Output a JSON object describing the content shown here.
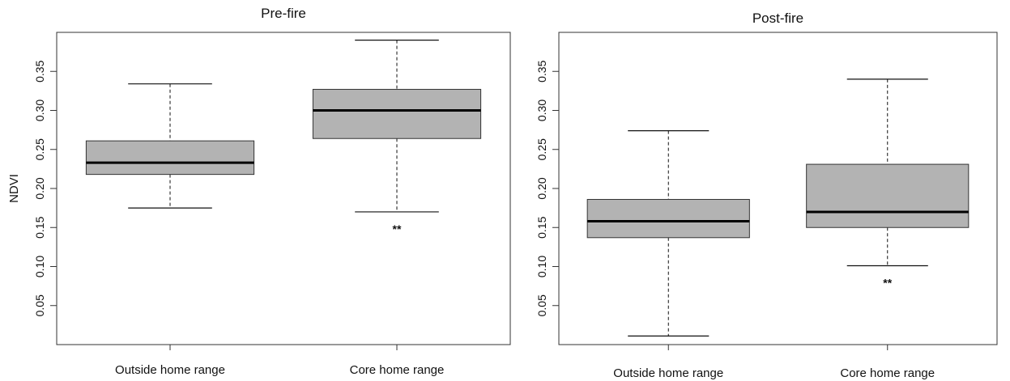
{
  "chart_data": [
    {
      "type": "box",
      "title": "Pre-fire",
      "ylabel": "NDVI",
      "ylim": [
        0.0,
        0.4
      ],
      "yticks": [
        "0.05",
        "0.10",
        "0.15",
        "0.20",
        "0.25",
        "0.30",
        "0.35"
      ],
      "categories": [
        "Outside home range",
        "Core home range"
      ],
      "boxes": [
        {
          "min": 0.175,
          "q1": 0.218,
          "median": 0.233,
          "q3": 0.261,
          "max": 0.334,
          "annotation": ""
        },
        {
          "min": 0.17,
          "q1": 0.264,
          "median": 0.3,
          "q3": 0.327,
          "max": 0.39,
          "annotation": "**"
        }
      ]
    },
    {
      "type": "box",
      "title": "Post-fire",
      "ylabel": "",
      "ylim": [
        0.0,
        0.4
      ],
      "yticks": [
        "0.05",
        "0.10",
        "0.15",
        "0.20",
        "0.25",
        "0.30",
        "0.35"
      ],
      "categories": [
        "Outside home range",
        "Core home range"
      ],
      "boxes": [
        {
          "min": 0.011,
          "q1": 0.137,
          "median": 0.158,
          "q3": 0.186,
          "max": 0.274,
          "annotation": ""
        },
        {
          "min": 0.101,
          "q1": 0.15,
          "median": 0.17,
          "q3": 0.231,
          "max": 0.34,
          "annotation": "**"
        }
      ]
    }
  ]
}
